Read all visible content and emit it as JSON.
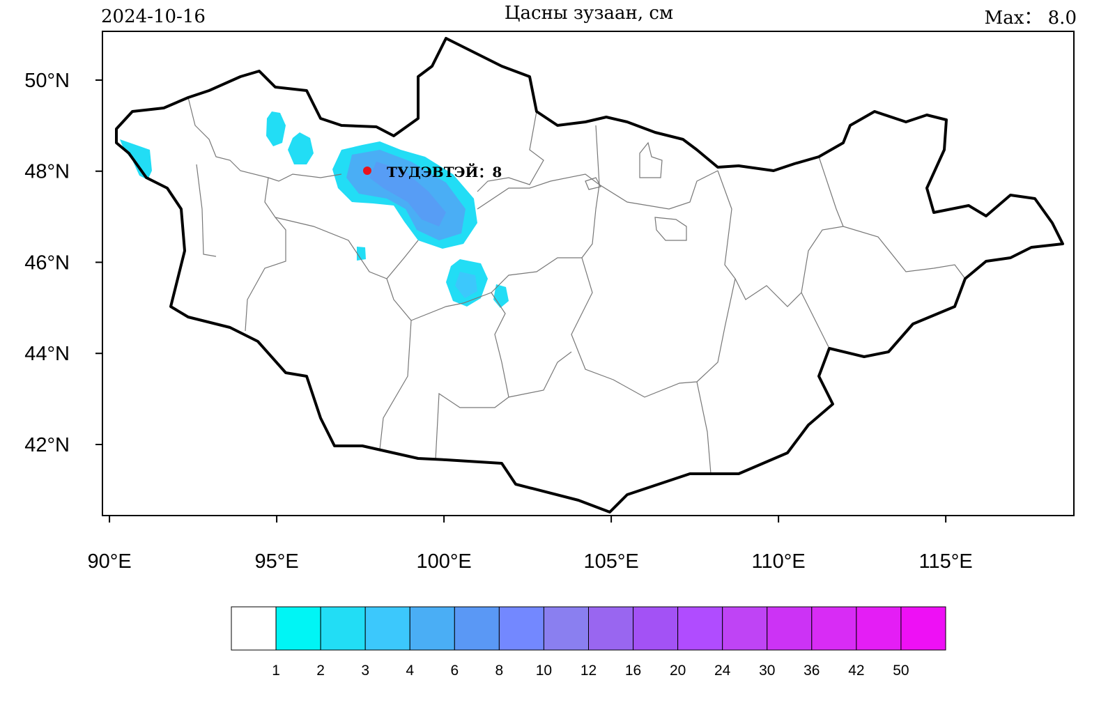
{
  "header": {
    "date": "2024-10-16",
    "title": "Цасны зузаан, см",
    "max": "Max： 8.0"
  },
  "map": {
    "xlim": [
      89.79,
      118.83
    ],
    "ylim": [
      40.44,
      51.07
    ],
    "lon_ticks": [
      {
        "value": 90,
        "label": "90°E"
      },
      {
        "value": 95,
        "label": "95°E"
      },
      {
        "value": 100,
        "label": "100°E"
      },
      {
        "value": 105,
        "label": "105°E"
      },
      {
        "value": 110,
        "label": "110°E"
      },
      {
        "value": 115,
        "label": "115°E"
      }
    ],
    "lat_ticks": [
      {
        "value": 42,
        "label": "42°N"
      },
      {
        "value": 44,
        "label": "44°N"
      },
      {
        "value": 46,
        "label": "46°N"
      },
      {
        "value": 48,
        "label": "48°N"
      },
      {
        "value": 50,
        "label": "50°N"
      }
    ],
    "station": {
      "label": "ТУДЭВТЭЙ：8",
      "color": "#e8141c"
    }
  },
  "colorbar": {
    "colors": [
      "#ffffff",
      "#00f5f5",
      "#22ddf5",
      "#3cc8fc",
      "#4aaef5",
      "#5a98f5",
      "#7388ff",
      "#8a7ff0",
      "#9966f0",
      "#a352f5",
      "#b04cff",
      "#bf44f5",
      "#cc33f5",
      "#d82cf5",
      "#e41ef5",
      "#ee10f5"
    ],
    "labels": [
      1,
      2,
      3,
      4,
      6,
      8,
      10,
      12,
      16,
      20,
      24,
      30,
      36,
      42,
      50
    ]
  }
}
